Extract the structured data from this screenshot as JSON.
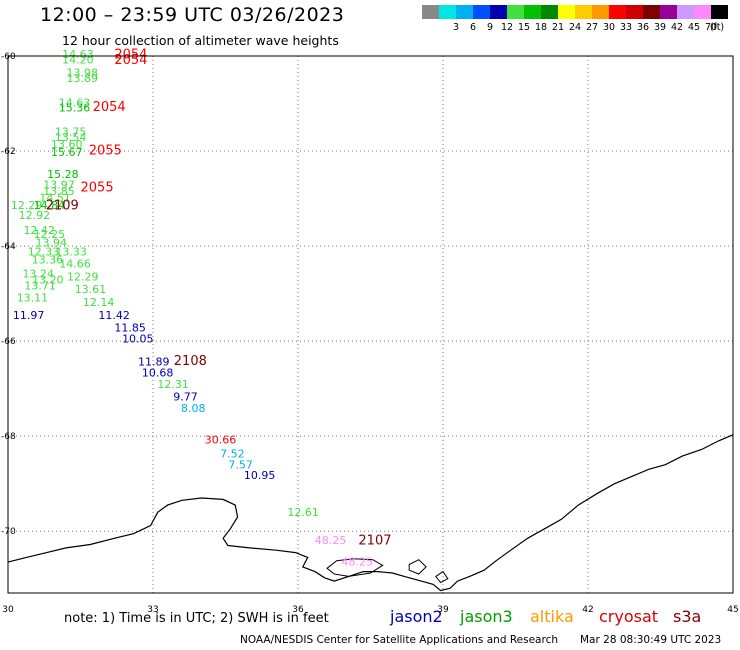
{
  "header": {
    "title": "12:00 – 23:59 UTC 03/26/2023",
    "subtitle": "12 hour collection of altimeter wave heights"
  },
  "legend": {
    "unit": "(ft)",
    "scale": [
      {
        "label": "",
        "color": "#888888"
      },
      {
        "label": "3",
        "color": "#00e5e5"
      },
      {
        "label": "6",
        "color": "#00b0f0"
      },
      {
        "label": "9",
        "color": "#0050ff"
      },
      {
        "label": "12",
        "color": "#0000b0"
      },
      {
        "label": "15",
        "color": "#40e040"
      },
      {
        "label": "18",
        "color": "#00c000"
      },
      {
        "label": "21",
        "color": "#008800"
      },
      {
        "label": "24",
        "color": "#ffff00"
      },
      {
        "label": "27",
        "color": "#ffcc00"
      },
      {
        "label": "30",
        "color": "#ff9900"
      },
      {
        "label": "33",
        "color": "#ff0000"
      },
      {
        "label": "36",
        "color": "#cc0000"
      },
      {
        "label": "39",
        "color": "#800000"
      },
      {
        "label": "42",
        "color": "#990099"
      },
      {
        "label": "45",
        "color": "#cc99ff"
      },
      {
        "label": "70",
        "color": "#ff88ff"
      },
      {
        "label": "",
        "color": "#000000"
      }
    ]
  },
  "axes": {
    "lon_ticks": [
      {
        "value": 30,
        "label": "30"
      },
      {
        "value": 33,
        "label": "33"
      },
      {
        "value": 36,
        "label": "36"
      },
      {
        "value": 39,
        "label": "39"
      },
      {
        "value": 42,
        "label": "42"
      },
      {
        "value": 45,
        "label": "45"
      }
    ],
    "lat_ticks": [
      {
        "value": -60,
        "label": "-60"
      },
      {
        "value": -62,
        "label": "-62"
      },
      {
        "value": -64,
        "label": "-64"
      },
      {
        "value": -66,
        "label": "-66"
      },
      {
        "value": -68,
        "label": "-68"
      },
      {
        "value": -70,
        "label": "-70"
      }
    ]
  },
  "observations": [
    {
      "lon": 31.12,
      "lat": -60.04,
      "text": "14.63",
      "color": "#40e040"
    },
    {
      "lon": 31.12,
      "lat": -60.16,
      "text": "14.20",
      "color": "#40e040"
    },
    {
      "lon": 31.21,
      "lat": -60.43,
      "text": "13.98",
      "color": "#40e040"
    },
    {
      "lon": 31.21,
      "lat": -60.55,
      "text": "13.89",
      "color": "#40e040"
    },
    {
      "lon": 31.05,
      "lat": -61.06,
      "text": "14.63",
      "color": "#40e040"
    },
    {
      "lon": 31.05,
      "lat": -61.17,
      "text": "15.36",
      "color": "#00c000"
    },
    {
      "lon": 30.97,
      "lat": -61.67,
      "text": "13.75",
      "color": "#40e040"
    },
    {
      "lon": 30.97,
      "lat": -61.79,
      "text": "13.54",
      "color": "#40e040"
    },
    {
      "lon": 30.89,
      "lat": -61.94,
      "text": "13.60",
      "color": "#40e040"
    },
    {
      "lon": 30.89,
      "lat": -62.1,
      "text": "15.67",
      "color": "#00c000"
    },
    {
      "lon": 30.81,
      "lat": -62.57,
      "text": "15.28",
      "color": "#00c000"
    },
    {
      "lon": 30.73,
      "lat": -62.79,
      "text": "13.97",
      "color": "#40e040"
    },
    {
      "lon": 30.73,
      "lat": -62.93,
      "text": "13.85",
      "color": "#40e040"
    },
    {
      "lon": 30.65,
      "lat": -63.06,
      "text": "14.51",
      "color": "#40e040"
    },
    {
      "lon": 30.06,
      "lat": -63.22,
      "text": "12.29",
      "color": "#40e040"
    },
    {
      "lon": 30.53,
      "lat": -63.22,
      "text": "14.84",
      "color": "#00c000"
    },
    {
      "lon": 30.22,
      "lat": -63.43,
      "text": "12.92",
      "color": "#40e040"
    },
    {
      "lon": 30.32,
      "lat": -63.75,
      "text": "12.42",
      "color": "#40e040"
    },
    {
      "lon": 30.53,
      "lat": -63.83,
      "text": "12.25",
      "color": "#40e040"
    },
    {
      "lon": 30.57,
      "lat": -64.01,
      "text": "13.94",
      "color": "#40e040"
    },
    {
      "lon": 30.41,
      "lat": -64.2,
      "text": "12.33",
      "color": "#40e040"
    },
    {
      "lon": 30.98,
      "lat": -64.2,
      "text": "13.33",
      "color": "#40e040"
    },
    {
      "lon": 30.49,
      "lat": -64.37,
      "text": "13.36",
      "color": "#40e040"
    },
    {
      "lon": 31.06,
      "lat": -64.45,
      "text": "14.66",
      "color": "#40e040"
    },
    {
      "lon": 30.3,
      "lat": -64.66,
      "text": "13.24",
      "color": "#40e040"
    },
    {
      "lon": 30.5,
      "lat": -64.79,
      "text": "13.20",
      "color": "#40e040"
    },
    {
      "lon": 31.22,
      "lat": -64.72,
      "text": "12.29",
      "color": "#40e040"
    },
    {
      "lon": 30.34,
      "lat": -64.91,
      "text": "13.71",
      "color": "#40e040"
    },
    {
      "lon": 31.38,
      "lat": -64.99,
      "text": "13.61",
      "color": "#40e040"
    },
    {
      "lon": 30.18,
      "lat": -65.17,
      "text": "13.11",
      "color": "#40e040"
    },
    {
      "lon": 31.55,
      "lat": -65.26,
      "text": "12.14",
      "color": "#40e040"
    },
    {
      "lon": 30.1,
      "lat": -65.53,
      "text": "11.97",
      "color": "#0000b0"
    },
    {
      "lon": 31.87,
      "lat": -65.53,
      "text": "11.42",
      "color": "#0000b0"
    },
    {
      "lon": 32.2,
      "lat": -65.8,
      "text": "11.85",
      "color": "#0000b0"
    },
    {
      "lon": 32.36,
      "lat": -66.03,
      "text": "10.05",
      "color": "#0000b0"
    },
    {
      "lon": 32.69,
      "lat": -66.51,
      "text": "11.89",
      "color": "#0000b0"
    },
    {
      "lon": 32.77,
      "lat": -66.74,
      "text": "10.68",
      "color": "#0000b0"
    },
    {
      "lon": 33.09,
      "lat": -66.99,
      "text": "12.31",
      "color": "#40e040"
    },
    {
      "lon": 33.42,
      "lat": -67.25,
      "text": "9.77",
      "color": "#0000b0"
    },
    {
      "lon": 33.58,
      "lat": -67.49,
      "text": "8.08",
      "color": "#00b0f0"
    },
    {
      "lon": 34.07,
      "lat": -68.15,
      "text": "30.66",
      "color": "#ff0000"
    },
    {
      "lon": 34.39,
      "lat": -68.45,
      "text": "7.52",
      "color": "#00b0f0"
    },
    {
      "lon": 34.56,
      "lat": -68.68,
      "text": "7.57",
      "color": "#00b0f0"
    },
    {
      "lon": 34.88,
      "lat": -68.9,
      "text": "10.95",
      "color": "#0000b0"
    },
    {
      "lon": 35.78,
      "lat": -69.68,
      "text": "12.61",
      "color": "#40e040"
    },
    {
      "lon": 36.35,
      "lat": -70.27,
      "text": "48.25",
      "color": "#ff88ff"
    },
    {
      "lon": 36.9,
      "lat": -70.72,
      "text": "48.25",
      "color": "#ff88ff"
    }
  ],
  "time_labels": [
    {
      "lon": 32.2,
      "lat": -60.05,
      "text": "2054",
      "color": "#ff0000"
    },
    {
      "lon": 32.2,
      "lat": -60.17,
      "text": "2054",
      "color": "#ff0000"
    },
    {
      "lon": 31.75,
      "lat": -61.16,
      "text": "2054",
      "color": "#ff0000"
    },
    {
      "lon": 31.67,
      "lat": -62.07,
      "text": "2055",
      "color": "#ff0000"
    },
    {
      "lon": 31.5,
      "lat": -62.85,
      "text": "2055",
      "color": "#ff0000"
    },
    {
      "lon": 30.78,
      "lat": -63.23,
      "text": "2109",
      "color": "#800000"
    },
    {
      "lon": 33.43,
      "lat": -66.5,
      "text": "2108",
      "color": "#800000"
    },
    {
      "lon": 37.25,
      "lat": -70.28,
      "text": "2107",
      "color": "#800000"
    }
  ],
  "coastline": [
    [
      30,
      -70.65
    ],
    [
      30.35,
      -70.56
    ],
    [
      30.8,
      -70.45
    ],
    [
      31.2,
      -70.35
    ],
    [
      31.7,
      -70.28
    ],
    [
      32.2,
      -70.15
    ],
    [
      32.6,
      -70.05
    ],
    [
      32.95,
      -69.88
    ],
    [
      33.1,
      -69.6
    ],
    [
      33.3,
      -69.45
    ],
    [
      33.6,
      -69.35
    ],
    [
      34.0,
      -69.3
    ],
    [
      34.45,
      -69.33
    ],
    [
      34.7,
      -69.45
    ],
    [
      34.75,
      -69.7
    ],
    [
      34.6,
      -69.95
    ],
    [
      34.45,
      -70.15
    ],
    [
      34.55,
      -70.3
    ],
    [
      35.0,
      -70.35
    ],
    [
      35.55,
      -70.4
    ],
    [
      35.95,
      -70.45
    ],
    [
      36.2,
      -70.55
    ],
    [
      36.1,
      -70.75
    ],
    [
      36.35,
      -70.85
    ],
    [
      36.55,
      -70.98
    ],
    [
      36.75,
      -71.05
    ],
    [
      37.05,
      -70.95
    ],
    [
      37.35,
      -70.85
    ],
    [
      37.65,
      -70.85
    ],
    [
      37.95,
      -70.88
    ],
    [
      38.2,
      -70.95
    ],
    [
      38.55,
      -71.05
    ],
    [
      38.8,
      -71.12
    ],
    [
      38.95,
      -71.25
    ],
    [
      39.15,
      -71.2
    ],
    [
      39.3,
      -71.05
    ],
    [
      39.55,
      -70.95
    ],
    [
      39.85,
      -70.82
    ],
    [
      40.1,
      -70.62
    ],
    [
      40.4,
      -70.4
    ],
    [
      40.75,
      -70.15
    ],
    [
      41.1,
      -69.95
    ],
    [
      41.45,
      -69.75
    ],
    [
      41.8,
      -69.45
    ],
    [
      42.2,
      -69.2
    ],
    [
      42.55,
      -69.0
    ],
    [
      42.9,
      -68.85
    ],
    [
      43.25,
      -68.7
    ],
    [
      43.6,
      -68.6
    ],
    [
      43.95,
      -68.42
    ],
    [
      44.35,
      -68.28
    ],
    [
      44.7,
      -68.1
    ],
    [
      45,
      -67.97
    ]
  ],
  "islands": [
    [
      [
        36.6,
        -70.78
      ],
      [
        36.8,
        -70.62
      ],
      [
        37.15,
        -70.58
      ],
      [
        37.55,
        -70.6
      ],
      [
        37.75,
        -70.72
      ],
      [
        37.5,
        -70.88
      ],
      [
        37.05,
        -70.95
      ],
      [
        36.75,
        -70.9
      ],
      [
        36.6,
        -70.78
      ]
    ],
    [
      [
        38.3,
        -70.7
      ],
      [
        38.5,
        -70.6
      ],
      [
        38.65,
        -70.75
      ],
      [
        38.5,
        -70.9
      ],
      [
        38.3,
        -70.82
      ],
      [
        38.3,
        -70.7
      ]
    ],
    [
      [
        38.85,
        -70.95
      ],
      [
        39.0,
        -70.85
      ],
      [
        39.1,
        -71.0
      ],
      [
        38.95,
        -71.08
      ],
      [
        38.85,
        -70.95
      ]
    ]
  ],
  "footer": {
    "note": "note:  1) Time is in UTC;  2) SWH is in feet",
    "satellites": [
      {
        "name": "jason2",
        "color": "#0000b0"
      },
      {
        "name": "jason3",
        "color": "#00a000"
      },
      {
        "name": "altika",
        "color": "#ff9900"
      },
      {
        "name": "cryosat",
        "color": "#dd0000"
      },
      {
        "name": "s3a",
        "color": "#800000"
      }
    ],
    "credit": "NOAA/NESDIS Center for Satellite Applications and Research",
    "timestamp": "Mar 28 08:30:49 UTC 2023"
  }
}
